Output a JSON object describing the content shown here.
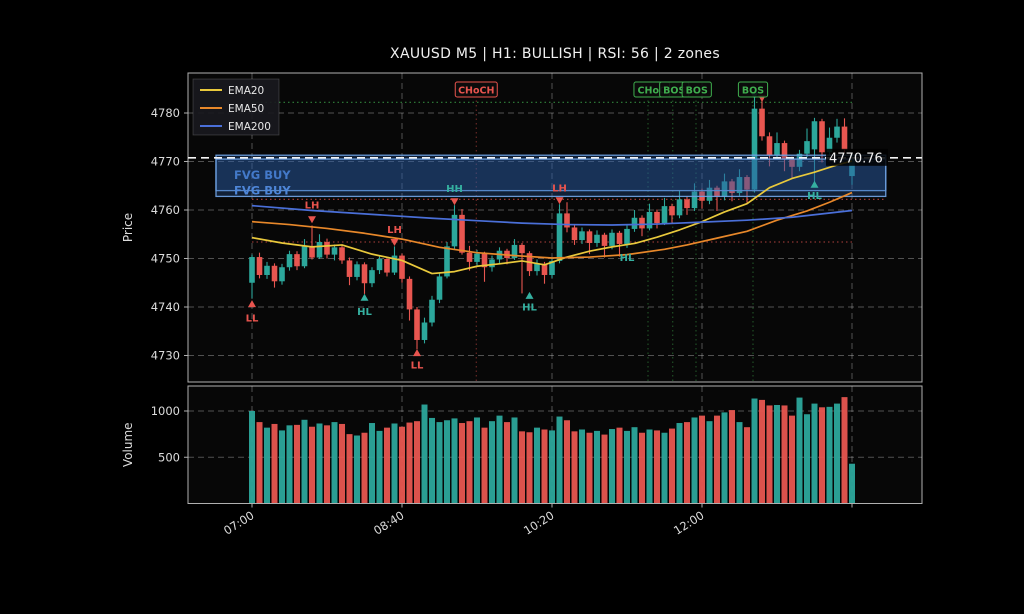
{
  "title": "XAUUSD M5  |  H1: BULLISH  |  RSI: 56  |  2 zones",
  "legend": {
    "items": [
      {
        "label": "EMA20",
        "color": "#e9c93c"
      },
      {
        "label": "EMA50",
        "color": "#e8882a"
      },
      {
        "label": "EMA200",
        "color": "#4a6fd8"
      }
    ]
  },
  "axes": {
    "price_axis_label": "Price",
    "volume_axis_label": "Volume",
    "price_ticks": [
      4730,
      4740,
      4750,
      4760,
      4770,
      4780
    ],
    "volume_ticks": [
      500,
      1000
    ],
    "time_ticks": [
      {
        "index": 0,
        "label": "07:00"
      },
      {
        "index": 20,
        "label": "08:40"
      },
      {
        "index": 40,
        "label": "10:20"
      },
      {
        "index": 60,
        "label": "12:00"
      },
      {
        "index": 80,
        "label": ""
      }
    ]
  },
  "colors": {
    "up": "#2ca79b",
    "down": "#e85650",
    "ema20": "#e9c93c",
    "ema50": "#e8882a",
    "ema200": "#4a6fd8",
    "zone_fill": "rgba(44,92,165,0.30)",
    "zone_border": "rgba(110,160,224,0.95)",
    "zone_text": "#4e86d8",
    "grid": "rgba(255,255,255,0.30)",
    "panel_border": "#b0b0b0",
    "tick_text": "#dcdcdc",
    "teal_label": "#35b0a0",
    "red_label": "#e8544e",
    "green_label": "#3fae4e",
    "current_price_line": "#f5f5f5"
  },
  "chart_data": {
    "type": "candlestick+volume",
    "symbol": "XAUUSD",
    "timeframe": "M5",
    "h1_bias": "BULLISH",
    "rsi": 56,
    "zones_count": 2,
    "price_range": [
      4726,
      4786
    ],
    "current_price": {
      "value": 4770.76,
      "label": "4770.76"
    },
    "candles": [
      [
        4745.0,
        4750.8,
        4741.8,
        4750.3
      ],
      [
        4750.3,
        4751.2,
        4745.9,
        4746.6
      ],
      [
        4746.6,
        4749.3,
        4745.8,
        4748.5
      ],
      [
        4748.5,
        4749.0,
        4744.0,
        4745.3
      ],
      [
        4745.3,
        4748.9,
        4744.6,
        4748.2
      ],
      [
        4748.2,
        4751.6,
        4747.5,
        4750.9
      ],
      [
        4750.9,
        4751.5,
        4747.6,
        4748.4
      ],
      [
        4748.4,
        4754.0,
        4748.0,
        4752.5
      ],
      [
        4752.5,
        4756.8,
        4749.8,
        4750.2
      ],
      [
        4750.2,
        4755.0,
        4749.9,
        4753.4
      ],
      [
        4753.4,
        4754.1,
        4750.0,
        4750.8
      ],
      [
        4750.8,
        4752.9,
        4749.6,
        4752.3
      ],
      [
        4752.3,
        4752.8,
        4748.9,
        4749.6
      ],
      [
        4749.6,
        4750.2,
        4744.5,
        4746.2
      ],
      [
        4746.2,
        4749.4,
        4745.5,
        4748.8
      ],
      [
        4748.8,
        4749.2,
        4742.7,
        4744.9
      ],
      [
        4744.9,
        4748.2,
        4744.1,
        4747.6
      ],
      [
        4747.6,
        4750.5,
        4746.8,
        4749.9
      ],
      [
        4749.9,
        4750.3,
        4746.3,
        4747.1
      ],
      [
        4747.1,
        4752.5,
        4746.6,
        4750.6
      ],
      [
        4750.6,
        4751.0,
        4745.0,
        4745.8
      ],
      [
        4745.8,
        4746.3,
        4737.2,
        4739.5
      ],
      [
        4739.5,
        4740.0,
        4731.3,
        4733.2
      ],
      [
        4733.2,
        4737.8,
        4732.5,
        4736.8
      ],
      [
        4736.8,
        4742.3,
        4736.0,
        4741.5
      ],
      [
        4741.5,
        4747.0,
        4740.8,
        4746.3
      ],
      [
        4746.3,
        4753.4,
        4745.9,
        4752.5
      ],
      [
        4752.5,
        4761.0,
        4751.8,
        4759.0
      ],
      [
        4759.0,
        4760.2,
        4750.8,
        4751.2
      ],
      [
        4751.2,
        4752.6,
        4747.5,
        4749.3
      ],
      [
        4749.3,
        4751.8,
        4748.4,
        4751.0
      ],
      [
        4751.0,
        4751.4,
        4745.2,
        4748.2
      ],
      [
        4748.2,
        4750.6,
        4747.3,
        4749.8
      ],
      [
        4749.8,
        4752.3,
        4749.0,
        4751.6
      ],
      [
        4751.6,
        4752.0,
        4748.8,
        4750.1
      ],
      [
        4750.1,
        4754.0,
        4749.7,
        4752.8
      ],
      [
        4752.8,
        4753.2,
        4742.8,
        4751.1
      ],
      [
        4751.1,
        4751.5,
        4746.4,
        4747.4
      ],
      [
        4747.4,
        4749.8,
        4746.5,
        4748.9
      ],
      [
        4748.9,
        4749.3,
        4744.8,
        4746.6
      ],
      [
        4746.6,
        4750.2,
        4746.0,
        4749.5
      ],
      [
        4749.5,
        4761.2,
        4749.0,
        4759.3
      ],
      [
        4759.3,
        4761.6,
        4755.4,
        4756.4
      ],
      [
        4756.4,
        4757.0,
        4752.8,
        4753.8
      ],
      [
        4753.8,
        4756.4,
        4753.0,
        4755.6
      ],
      [
        4755.6,
        4756.0,
        4750.9,
        4753.2
      ],
      [
        4753.2,
        4755.8,
        4752.4,
        4754.9
      ],
      [
        4754.9,
        4755.3,
        4750.2,
        4752.6
      ],
      [
        4752.6,
        4756.0,
        4751.9,
        4755.3
      ],
      [
        4755.3,
        4755.7,
        4750.4,
        4753.0
      ],
      [
        4753.0,
        4756.8,
        4752.2,
        4756.1
      ],
      [
        4756.1,
        4760.0,
        4755.5,
        4758.4
      ],
      [
        4758.4,
        4758.9,
        4754.6,
        4756.2
      ],
      [
        4756.2,
        4761.3,
        4755.8,
        4759.6
      ],
      [
        4759.6,
        4760.1,
        4756.2,
        4757.3
      ],
      [
        4757.3,
        4762.5,
        4756.9,
        4760.8
      ],
      [
        4760.8,
        4761.3,
        4757.4,
        4758.9
      ],
      [
        4758.9,
        4764.0,
        4758.3,
        4762.2
      ],
      [
        4762.2,
        4762.8,
        4759.0,
        4760.4
      ],
      [
        4760.4,
        4765.5,
        4759.8,
        4763.8
      ],
      [
        4763.8,
        4764.4,
        4760.3,
        4761.9
      ],
      [
        4761.9,
        4766.2,
        4761.2,
        4764.6
      ],
      [
        4764.6,
        4765.0,
        4759.8,
        4762.7
      ],
      [
        4762.7,
        4767.5,
        4762.0,
        4765.9
      ],
      [
        4765.9,
        4766.4,
        4761.8,
        4763.5
      ],
      [
        4763.5,
        4768.4,
        4762.9,
        4766.8
      ],
      [
        4766.8,
        4767.2,
        4761.5,
        4764.2
      ],
      [
        4764.2,
        4783.0,
        4763.6,
        4780.9
      ],
      [
        4780.9,
        4782.6,
        4774.3,
        4775.2
      ],
      [
        4775.2,
        4776.0,
        4769.0,
        4771.3
      ],
      [
        4771.3,
        4776.0,
        4770.6,
        4773.8
      ],
      [
        4773.8,
        4774.3,
        4768.0,
        4770.4
      ],
      [
        4770.4,
        4771.0,
        4766.5,
        4768.9
      ],
      [
        4768.9,
        4772.4,
        4768.0,
        4771.6
      ],
      [
        4771.6,
        4776.8,
        4770.9,
        4774.2
      ],
      [
        4772.5,
        4779.0,
        4765.8,
        4778.3
      ],
      [
        4778.3,
        4778.8,
        4769.8,
        4771.9
      ],
      [
        4771.9,
        4777.0,
        4771.2,
        4774.9
      ],
      [
        4774.9,
        4778.8,
        4773.9,
        4777.2
      ],
      [
        4777.2,
        4778.9,
        4771.8,
        4772.4
      ],
      [
        4767.0,
        4771.9,
        4765.2,
        4770.76
      ]
    ],
    "volumes": [
      1000,
      880,
      820,
      860,
      790,
      845,
      850,
      905,
      830,
      865,
      845,
      880,
      860,
      750,
      735,
      765,
      870,
      785,
      820,
      865,
      830,
      875,
      890,
      1070,
      925,
      880,
      900,
      920,
      870,
      890,
      930,
      820,
      890,
      950,
      880,
      930,
      780,
      770,
      820,
      800,
      790,
      940,
      900,
      780,
      800,
      765,
      785,
      745,
      805,
      820,
      785,
      825,
      765,
      800,
      790,
      765,
      810,
      870,
      880,
      930,
      950,
      890,
      950,
      985,
      1010,
      880,
      825,
      1135,
      1120,
      1060,
      1065,
      1060,
      950,
      1145,
      965,
      1080,
      1040,
      1045,
      1080,
      1150,
      430
    ],
    "volume_range": [
      0,
      1250
    ],
    "emas": {
      "ema20": [
        [
          0,
          4754.3
        ],
        [
          4,
          4753.2
        ],
        [
          8,
          4752.4
        ],
        [
          12,
          4752.8
        ],
        [
          16,
          4750.9
        ],
        [
          20,
          4749.6
        ],
        [
          24,
          4746.9
        ],
        [
          27,
          4747.3
        ],
        [
          30,
          4748.4
        ],
        [
          33,
          4748.9
        ],
        [
          36,
          4749.5
        ],
        [
          39,
          4748.7
        ],
        [
          42,
          4750.3
        ],
        [
          45,
          4751.5
        ],
        [
          48,
          4752.4
        ],
        [
          51,
          4753.1
        ],
        [
          54,
          4754.4
        ],
        [
          57,
          4755.9
        ],
        [
          60,
          4757.6
        ],
        [
          63,
          4759.6
        ],
        [
          66,
          4761.3
        ],
        [
          69,
          4764.6
        ],
        [
          72,
          4766.5
        ],
        [
          75,
          4767.8
        ],
        [
          78,
          4769.3
        ],
        [
          80,
          4770.1
        ]
      ],
      "ema50": [
        [
          0,
          4757.6
        ],
        [
          5,
          4757.0
        ],
        [
          10,
          4756.2
        ],
        [
          15,
          4755.2
        ],
        [
          20,
          4754.0
        ],
        [
          25,
          4752.3
        ],
        [
          30,
          4751.2
        ],
        [
          35,
          4750.6
        ],
        [
          40,
          4750.1
        ],
        [
          45,
          4750.3
        ],
        [
          50,
          4750.8
        ],
        [
          55,
          4751.9
        ],
        [
          58,
          4752.8
        ],
        [
          62,
          4754.2
        ],
        [
          66,
          4755.6
        ],
        [
          70,
          4757.9
        ],
        [
          74,
          4759.8
        ],
        [
          77,
          4761.6
        ],
        [
          80,
          4763.6
        ]
      ],
      "ema200": [
        [
          0,
          4760.9
        ],
        [
          8,
          4759.9
        ],
        [
          16,
          4759.1
        ],
        [
          24,
          4758.3
        ],
        [
          30,
          4757.8
        ],
        [
          36,
          4757.3
        ],
        [
          42,
          4757.0
        ],
        [
          48,
          4756.9
        ],
        [
          54,
          4757.1
        ],
        [
          60,
          4757.5
        ],
        [
          66,
          4757.9
        ],
        [
          72,
          4758.5
        ],
        [
          76,
          4759.2
        ],
        [
          80,
          4759.9
        ]
      ]
    },
    "zones": [
      {
        "label": "FVG BUY",
        "x1_i": -4.8,
        "x2_i": 84.5,
        "top": 4771.3,
        "bottom": 4764.0,
        "label_i": -2.4,
        "label_price": 4767.1
      },
      {
        "label": "FVG BUY",
        "x1_i": -4.8,
        "x2_i": 84.5,
        "top": 4770.5,
        "bottom": 4762.8,
        "label_i": -2.4,
        "label_price": 4763.9
      }
    ],
    "swings": [
      {
        "i": 0,
        "label": "LL",
        "side": "low",
        "label_price": 4737.6,
        "marker_price": 4740.7,
        "label_color": "red",
        "marker_color": "red"
      },
      {
        "i": 8,
        "label": "LH",
        "side": "high",
        "label_price": 4760.9,
        "marker_price": 4758.0,
        "label_color": "red",
        "marker_color": "red"
      },
      {
        "i": 15,
        "label": "HL",
        "side": "low",
        "label_price": 4739.0,
        "marker_price": 4742.0,
        "label_color": "teal",
        "marker_color": "teal"
      },
      {
        "i": 19,
        "label": "LH",
        "side": "high",
        "label_price": 4755.9,
        "marker_price": 4753.3,
        "label_color": "red",
        "marker_color": "red"
      },
      {
        "i": 22,
        "label": "LL",
        "side": "low",
        "label_price": 4727.9,
        "marker_price": 4730.6,
        "label_color": "red",
        "marker_color": "red"
      },
      {
        "i": 27,
        "label": "HH",
        "side": "high",
        "label_price": 4764.3,
        "marker_price": 4761.7,
        "label_color": "teal",
        "marker_color": "red"
      },
      {
        "i": 37,
        "label": "HL",
        "side": "low",
        "label_price": 4739.9,
        "marker_price": 4742.4,
        "label_color": "teal",
        "marker_color": "teal"
      },
      {
        "i": 41,
        "label": "LH",
        "side": "high",
        "label_price": 4764.4,
        "marker_price": 4761.9,
        "label_color": "red",
        "marker_color": "red"
      },
      {
        "i": 50,
        "label": "HL",
        "side": "low",
        "label_price": 4750.1,
        "marker_price": null,
        "label_color": "teal",
        "marker_color": "teal"
      },
      {
        "i": 75,
        "label": "HL",
        "side": "low",
        "label_price": 4762.9,
        "marker_price": 4765.3,
        "label_color": "teal",
        "marker_color": "teal"
      }
    ],
    "extra_markers": [
      {
        "i": 67,
        "dir": "down",
        "price": 4783.6,
        "color": "teal"
      },
      {
        "i": 68,
        "dir": "down",
        "price": 4783.0,
        "color": "red"
      }
    ],
    "structures": [
      {
        "i": 29.9,
        "label": "CHoCH",
        "color": "red"
      },
      {
        "i": 53.3,
        "label": "CHoC",
        "color": "green"
      },
      {
        "i": 56.3,
        "label": "BOS",
        "color": "green"
      },
      {
        "i": 59.3,
        "label": "BOS",
        "color": "green"
      },
      {
        "i": 66.8,
        "label": "BOS",
        "color": "green"
      }
    ],
    "vlines": [
      {
        "i": 29.9,
        "color": "red"
      },
      {
        "i": 52.8,
        "color": "green"
      },
      {
        "i": 56.1,
        "color": "green"
      },
      {
        "i": 59.2,
        "color": "green"
      },
      {
        "i": 66.8,
        "color": "green"
      }
    ],
    "levels": [
      {
        "price": 4782.2,
        "x1_i": 0,
        "x2_i": 80,
        "color": "green"
      },
      {
        "price": 4762.2,
        "x1_i": 0,
        "x2_i": 84.5,
        "color": "red"
      },
      {
        "price": 4753.4,
        "x1_i": 0,
        "x2_i": 80,
        "color": "red"
      }
    ]
  }
}
